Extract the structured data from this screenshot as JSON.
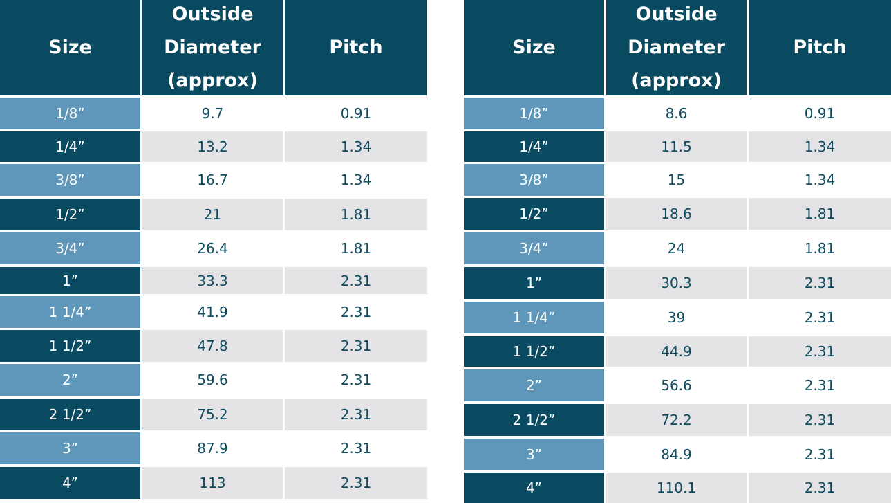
{
  "headers": {
    "size": "Size",
    "diameter": "Outside Diameter (approx)",
    "pitch": "Pitch"
  },
  "colors": {
    "header_bg": "#0a4a60",
    "size_light": "#5f97ba",
    "size_dark": "#0a4a60",
    "row_grey": "#e4e4e6",
    "text": "#0e4d61"
  },
  "left_table": {
    "rows": [
      {
        "size": "1/8”",
        "diameter": "9.7",
        "pitch": "0.91"
      },
      {
        "size": "1/4”",
        "diameter": "13.2",
        "pitch": "1.34"
      },
      {
        "size": "3/8”",
        "diameter": "16.7",
        "pitch": "1.34"
      },
      {
        "size": "1/2”",
        "diameter": "21",
        "pitch": "1.81"
      },
      {
        "size": "3/4”",
        "diameter": "26.4",
        "pitch": "1.81"
      },
      {
        "size": "1”",
        "diameter": "33.3",
        "pitch": "2.31"
      },
      {
        "size": "1 1/4”",
        "diameter": "41.9",
        "pitch": "2.31"
      },
      {
        "size": "1 1/2”",
        "diameter": "47.8",
        "pitch": "2.31"
      },
      {
        "size": "2”",
        "diameter": "59.6",
        "pitch": "2.31"
      },
      {
        "size": "2 1/2”",
        "diameter": "75.2",
        "pitch": "2.31"
      },
      {
        "size": "3”",
        "diameter": "87.9",
        "pitch": "2.31"
      },
      {
        "size": "4”",
        "diameter": "113",
        "pitch": "2.31"
      }
    ]
  },
  "right_table": {
    "rows": [
      {
        "size": "1/8”",
        "diameter": "8.6",
        "pitch": "0.91"
      },
      {
        "size": "1/4”",
        "diameter": "11.5",
        "pitch": "1.34"
      },
      {
        "size": "3/8”",
        "diameter": "15",
        "pitch": "1.34"
      },
      {
        "size": "1/2”",
        "diameter": "18.6",
        "pitch": "1.81"
      },
      {
        "size": "3/4”",
        "diameter": "24",
        "pitch": "1.81"
      },
      {
        "size": "1”",
        "diameter": "30.3",
        "pitch": "2.31"
      },
      {
        "size": "1 1/4”",
        "diameter": "39",
        "pitch": "2.31"
      },
      {
        "size": "1 1/2”",
        "diameter": "44.9",
        "pitch": "2.31"
      },
      {
        "size": "2”",
        "diameter": "56.6",
        "pitch": "2.31"
      },
      {
        "size": "2 1/2”",
        "diameter": "72.2",
        "pitch": "2.31"
      },
      {
        "size": "3”",
        "diameter": "84.9",
        "pitch": "2.31"
      },
      {
        "size": "4”",
        "diameter": "110.1",
        "pitch": "2.31"
      }
    ]
  }
}
